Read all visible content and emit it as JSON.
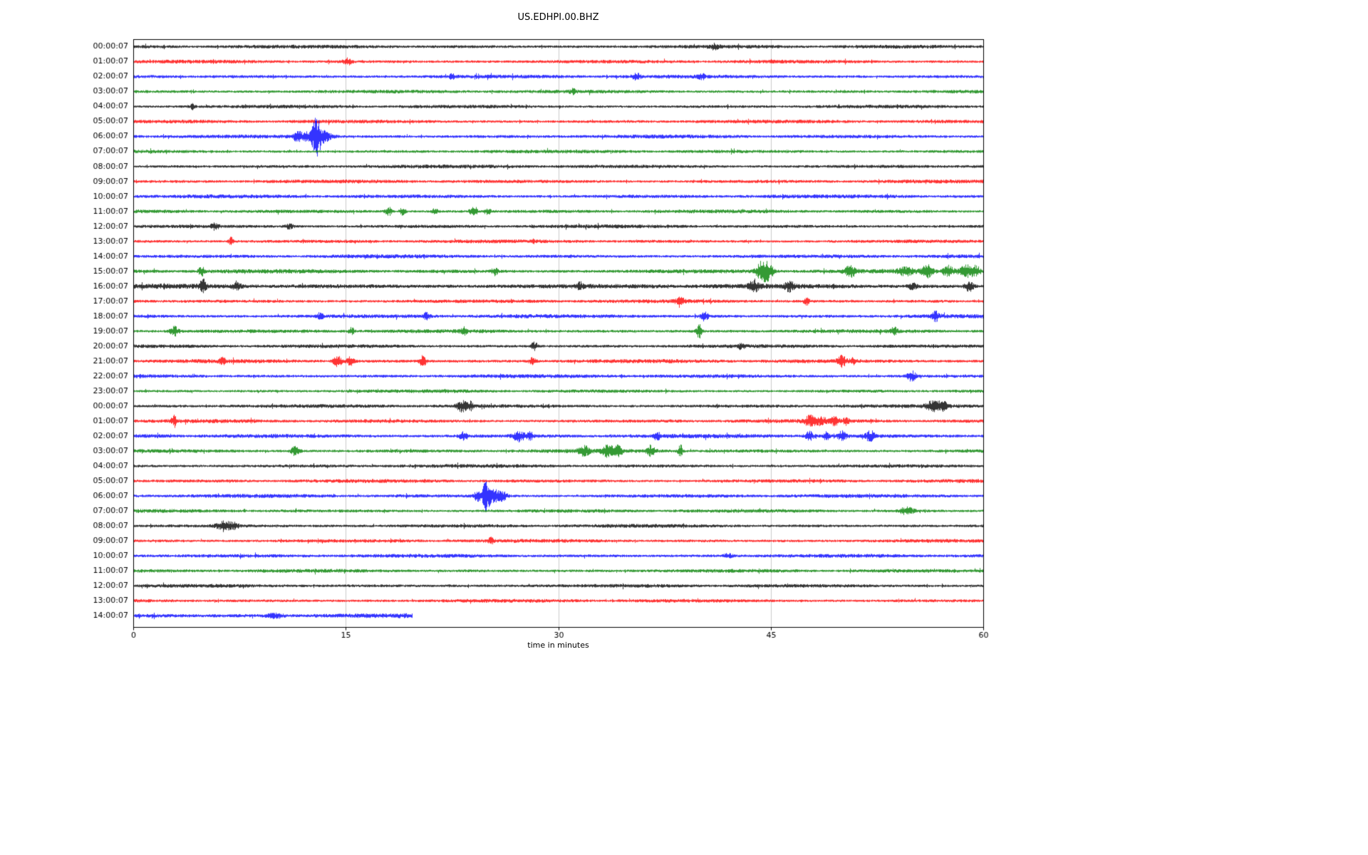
{
  "title": "US.EDHPI.00.BHZ",
  "chart_data": {
    "type": "line",
    "subtype": "seismogram-helicorder-dayplot",
    "title": "US.EDHPI.00.BHZ",
    "xlabel": "time in minutes",
    "x_ticks": [
      0,
      15,
      30,
      45,
      60
    ],
    "x_range": [
      0,
      60
    ],
    "minutes_per_row": 60,
    "grid": "vertical-gridlines-at-15-30-45",
    "legend": "none",
    "color_cycle": [
      "#000000",
      "#ff0000",
      "#0000ff",
      "#008000"
    ],
    "rows": [
      {
        "label": "00:00:07",
        "noise": 2.3,
        "events": [
          [
            41,
            3,
            0.3
          ]
        ]
      },
      {
        "label": "01:00:07",
        "noise": 2.3,
        "events": [
          [
            15.1,
            4,
            0.3
          ]
        ]
      },
      {
        "label": "02:00:07",
        "noise": 2.4,
        "events": [
          [
            22.5,
            3,
            0.2
          ],
          [
            35.5,
            4,
            0.3
          ],
          [
            40.1,
            4,
            0.2
          ]
        ]
      },
      {
        "label": "03:00:07",
        "noise": 2.3,
        "events": [
          [
            31,
            3,
            0.2
          ]
        ]
      },
      {
        "label": "04:00:07",
        "noise": 2.2,
        "events": [
          [
            4.2,
            5,
            0.15
          ]
        ]
      },
      {
        "label": "05:00:07",
        "noise": 2.3,
        "events": []
      },
      {
        "label": "06:00:07",
        "noise": 2.4,
        "events": [
          [
            11.6,
            7,
            0.3
          ],
          [
            12.2,
            5,
            0.3
          ],
          [
            12.9,
            26,
            0.3
          ],
          [
            13.4,
            7,
            0.6
          ]
        ]
      },
      {
        "label": "07:00:07",
        "noise": 2.2,
        "events": []
      },
      {
        "label": "08:00:07",
        "noise": 2.3,
        "events": []
      },
      {
        "label": "09:00:07",
        "noise": 2.3,
        "events": []
      },
      {
        "label": "10:00:07",
        "noise": 2.4,
        "events": []
      },
      {
        "label": "11:00:07",
        "noise": 2.3,
        "events": [
          [
            18,
            6,
            0.2
          ],
          [
            19,
            5,
            0.2
          ],
          [
            21.3,
            4,
            0.2
          ],
          [
            24,
            6,
            0.25
          ],
          [
            25,
            4,
            0.2
          ]
        ]
      },
      {
        "label": "12:00:07",
        "noise": 2.3,
        "events": [
          [
            5.7,
            4,
            0.3
          ],
          [
            11,
            3,
            0.3
          ]
        ]
      },
      {
        "label": "13:00:07",
        "noise": 2.3,
        "events": [
          [
            6.9,
            5,
            0.2
          ]
        ]
      },
      {
        "label": "14:00:07",
        "noise": 2.4,
        "events": []
      },
      {
        "label": "15:00:07",
        "noise": 2.6,
        "events": [
          [
            4.8,
            6,
            0.2
          ],
          [
            25.5,
            5,
            0.2
          ],
          [
            44.4,
            14,
            0.4
          ],
          [
            44.9,
            8,
            0.3
          ],
          [
            50.6,
            7,
            0.4
          ],
          [
            54.5,
            5,
            0.5
          ],
          [
            56,
            8,
            0.4
          ],
          [
            57.5,
            7,
            0.4
          ],
          [
            58.8,
            8,
            0.5
          ],
          [
            59.5,
            6,
            0.3
          ]
        ]
      },
      {
        "label": "16:00:07",
        "noise": 3.0,
        "events": [
          [
            4.9,
            9,
            0.2
          ],
          [
            7.3,
            6,
            0.25
          ],
          [
            31.5,
            5,
            0.2
          ],
          [
            43.8,
            8,
            0.3
          ],
          [
            46.3,
            6,
            0.3
          ],
          [
            55,
            4,
            0.3
          ],
          [
            59,
            6,
            0.3
          ]
        ]
      },
      {
        "label": "17:00:07",
        "noise": 2.4,
        "events": [
          [
            38.6,
            5,
            0.3
          ],
          [
            47.5,
            5,
            0.2
          ]
        ]
      },
      {
        "label": "18:00:07",
        "noise": 2.5,
        "events": [
          [
            13.2,
            5,
            0.2
          ],
          [
            20.7,
            6,
            0.2
          ],
          [
            40.3,
            6,
            0.25
          ],
          [
            56.6,
            6,
            0.3
          ]
        ]
      },
      {
        "label": "19:00:07",
        "noise": 2.4,
        "events": [
          [
            2.9,
            6,
            0.3
          ],
          [
            15.4,
            5,
            0.2
          ],
          [
            23.3,
            5,
            0.2
          ],
          [
            39.9,
            8,
            0.2
          ],
          [
            53.7,
            5,
            0.2
          ]
        ]
      },
      {
        "label": "20:00:07",
        "noise": 2.3,
        "events": [
          [
            28.3,
            5,
            0.25
          ],
          [
            42.9,
            4,
            0.2
          ]
        ]
      },
      {
        "label": "21:00:07",
        "noise": 2.5,
        "events": [
          [
            6.3,
            4,
            0.2
          ],
          [
            14.4,
            7,
            0.3
          ],
          [
            15.3,
            6,
            0.25
          ],
          [
            20.4,
            7,
            0.25
          ],
          [
            28.2,
            6,
            0.2
          ],
          [
            50,
            7,
            0.3
          ],
          [
            50.8,
            5,
            0.2
          ]
        ]
      },
      {
        "label": "22:00:07",
        "noise": 2.4,
        "events": [
          [
            54.9,
            7,
            0.3
          ]
        ]
      },
      {
        "label": "23:00:07",
        "noise": 2.2,
        "events": []
      },
      {
        "label": "00:00:07",
        "noise": 2.3,
        "events": [
          [
            23.2,
            7,
            0.4
          ],
          [
            23.8,
            5,
            0.2
          ],
          [
            56.5,
            7,
            0.5
          ],
          [
            57.2,
            5,
            0.3
          ]
        ]
      },
      {
        "label": "01:00:07",
        "noise": 2.4,
        "events": [
          [
            2.9,
            7,
            0.15
          ],
          [
            47.8,
            7,
            0.4
          ],
          [
            48.6,
            5,
            0.3
          ],
          [
            49.5,
            5,
            0.3
          ],
          [
            50.3,
            4,
            0.2
          ]
        ]
      },
      {
        "label": "02:00:07",
        "noise": 2.6,
        "events": [
          [
            23.3,
            5,
            0.3
          ],
          [
            27.2,
            7,
            0.4
          ],
          [
            28,
            5,
            0.2
          ],
          [
            37,
            4,
            0.2
          ],
          [
            47.7,
            6,
            0.3
          ],
          [
            48.9,
            5,
            0.2
          ],
          [
            50,
            6,
            0.3
          ],
          [
            52,
            7,
            0.3
          ]
        ]
      },
      {
        "label": "03:00:07",
        "noise": 2.4,
        "events": [
          [
            11.4,
            6,
            0.3
          ],
          [
            31.8,
            6,
            0.4
          ],
          [
            33.5,
            8,
            0.4
          ],
          [
            34.2,
            6,
            0.3
          ],
          [
            36.5,
            7,
            0.3
          ],
          [
            38.6,
            9,
            0.15
          ]
        ]
      },
      {
        "label": "04:00:07",
        "noise": 2.3,
        "events": []
      },
      {
        "label": "05:00:07",
        "noise": 2.3,
        "events": []
      },
      {
        "label": "06:00:07",
        "noise": 2.4,
        "events": [
          [
            24.3,
            6,
            0.3
          ],
          [
            24.9,
            22,
            0.25
          ],
          [
            25.5,
            8,
            0.4
          ],
          [
            26.1,
            5,
            0.3
          ]
        ]
      },
      {
        "label": "07:00:07",
        "noise": 2.3,
        "events": [
          [
            54.6,
            5,
            0.5
          ]
        ]
      },
      {
        "label": "08:00:07",
        "noise": 2.3,
        "events": [
          [
            6.4,
            6,
            0.5
          ],
          [
            7.1,
            4,
            0.3
          ]
        ]
      },
      {
        "label": "09:00:07",
        "noise": 2.3,
        "events": [
          [
            25.2,
            4,
            0.2
          ]
        ]
      },
      {
        "label": "10:00:07",
        "noise": 2.4,
        "events": [
          [
            42,
            3,
            0.3
          ]
        ]
      },
      {
        "label": "11:00:07",
        "noise": 2.3,
        "events": []
      },
      {
        "label": "12:00:07",
        "noise": 2.3,
        "events": []
      },
      {
        "label": "13:00:07",
        "noise": 2.3,
        "events": []
      },
      {
        "label": "14:00:07",
        "noise": 3.0,
        "events": [
          [
            10,
            3,
            0.5
          ]
        ],
        "end_minute": 19.7
      }
    ]
  }
}
